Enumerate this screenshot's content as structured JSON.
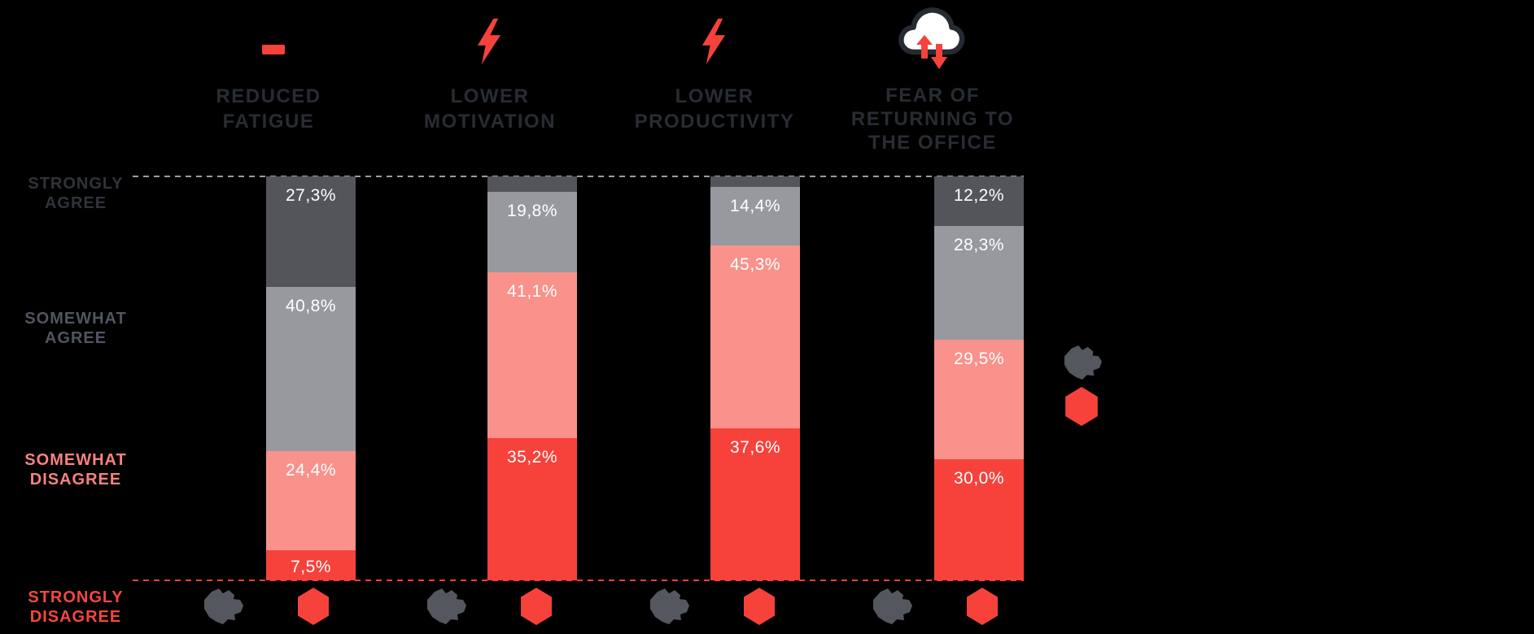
{
  "background": "#000000",
  "colors": {
    "brand_red": "#f6423b",
    "salmon": "#f8928b",
    "dark_gray": "#53555b",
    "light_gray": "#97999e",
    "header_text": "#282c33",
    "label_strongly_agree": "#30333a",
    "label_somewhat_agree": "#515560",
    "label_somewhat_disagree": "#f5837d",
    "label_strongly_disagree": "#f64740",
    "value_text": "#ffffff",
    "dashed_top_line": "#9b9da2",
    "dashed_bottom_line": "#f6423b",
    "cloud_outline": "#262a31",
    "cloud_fill": "#ffffff",
    "blob_gray": "#54575e"
  },
  "headers": [
    {
      "icon": "minus-icon",
      "lines": {
        "l1": "REDUCED",
        "l2": "FATIGUE",
        "l3": ""
      }
    },
    {
      "icon": "lightning-icon",
      "lines": {
        "l1": "LOWER",
        "l2": "MOTIVATION",
        "l3": ""
      }
    },
    {
      "icon": "lightning-icon",
      "lines": {
        "l1": "LOWER",
        "l2": "PRODUCTIVITY",
        "l3": ""
      }
    },
    {
      "icon": "cloud-arrows-icon",
      "lines": {
        "l1": "FEAR OF",
        "l2": "RETURNING TO",
        "l3": "THE OFFICE"
      }
    }
  ],
  "row_labels": [
    {
      "l1": "STRONGLY",
      "l2": "AGREE"
    },
    {
      "l1": "SOMEWHAT",
      "l2": "AGREE"
    },
    {
      "l1": "SOMEWHAT",
      "l2": "DISAGREE"
    },
    {
      "l1": "STRONGLY",
      "l2": "DISAGREE"
    }
  ],
  "footer_icons": {
    "left": "gray-blob-icon",
    "right": "red-hexagon-icon"
  },
  "side_icons": {
    "top": "gray-blob-icon",
    "bottom": "red-hexagon-icon"
  },
  "chart_data": {
    "type": "bar",
    "subtype": "stacked-100-percent-columns",
    "categories": [
      "REDUCED FATIGUE",
      "LOWER MOTIVATION",
      "LOWER PRODUCTIVITY",
      "FEAR OF RETURNING TO THE OFFICE"
    ],
    "row_scale_top_to_bottom": [
      "STRONGLY AGREE",
      "SOMEWHAT AGREE",
      "SOMEWHAT DISAGREE",
      "STRONGLY DISAGREE"
    ],
    "value_format": "percent-comma-decimal",
    "grid": "two dashed horizontal guides at 100% (gray) and 0% (red)",
    "legend_position": "right-side icons, no text",
    "bars": [
      {
        "category": "REDUCED FATIGUE",
        "segments": [
          {
            "name": "strongly-agree",
            "pct": 27.3,
            "label": "27,3%"
          },
          {
            "name": "somewhat-agree",
            "pct": 40.8,
            "label": "40,8%"
          },
          {
            "name": "somewhat-disagree",
            "pct": 24.4,
            "label": "24,4%"
          },
          {
            "name": "strongly-disagree",
            "pct": 7.5,
            "label": "7,5%"
          }
        ]
      },
      {
        "category": "LOWER MOTIVATION",
        "segments": [
          {
            "name": "strongly-agree",
            "pct": 3.9,
            "label": ""
          },
          {
            "name": "somewhat-agree",
            "pct": 19.8,
            "label": "19,8%"
          },
          {
            "name": "somewhat-disagree",
            "pct": 41.1,
            "label": "41,1%"
          },
          {
            "name": "strongly-disagree",
            "pct": 35.2,
            "label": "35,2%"
          }
        ]
      },
      {
        "category": "LOWER PRODUCTIVITY",
        "segments": [
          {
            "name": "strongly-agree",
            "pct": 2.7,
            "label": ""
          },
          {
            "name": "somewhat-agree",
            "pct": 14.4,
            "label": "14,4%"
          },
          {
            "name": "somewhat-disagree",
            "pct": 45.3,
            "label": "45,3%"
          },
          {
            "name": "strongly-disagree",
            "pct": 37.6,
            "label": "37,6%"
          }
        ]
      },
      {
        "category": "FEAR OF RETURNING TO THE OFFICE",
        "segments": [
          {
            "name": "strongly-agree",
            "pct": 12.2,
            "label": "12,2%"
          },
          {
            "name": "somewhat-agree",
            "pct": 28.3,
            "label": "28,3%"
          },
          {
            "name": "somewhat-disagree",
            "pct": 29.5,
            "label": "29,5%"
          },
          {
            "name": "strongly-disagree",
            "pct": 30.0,
            "label": "30,0%"
          }
        ]
      }
    ]
  }
}
